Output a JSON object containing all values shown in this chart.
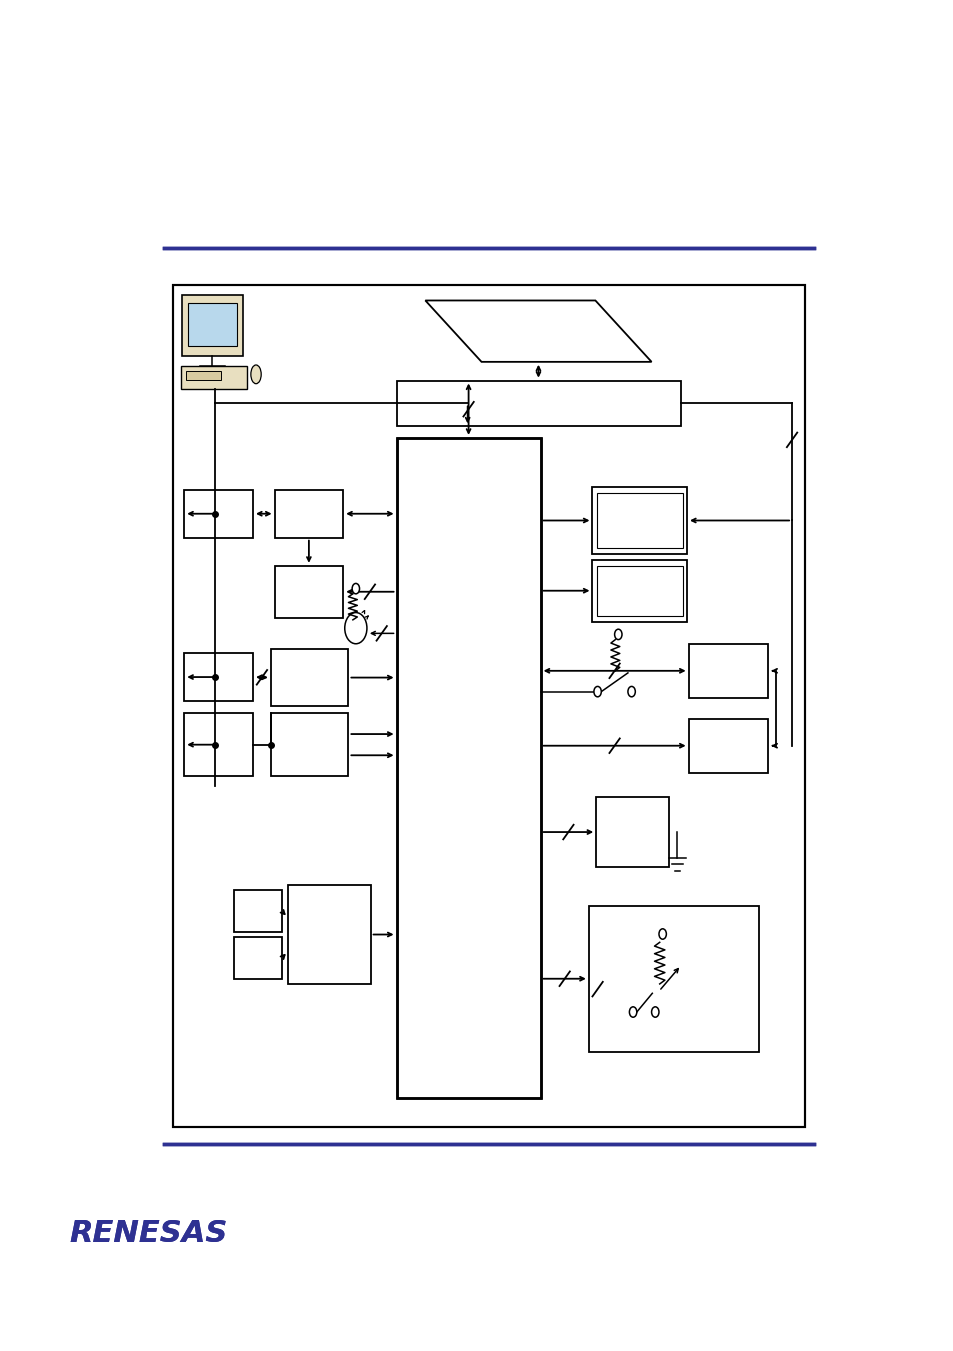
{
  "fig_w": 9.54,
  "fig_h": 13.51,
  "blue": "#2e3192",
  "black": "#000000",
  "white": "#ffffff",
  "beige": "#e8dfc0",
  "ltblue": "#b8d8ec",
  "beige2": "#d8cba0"
}
